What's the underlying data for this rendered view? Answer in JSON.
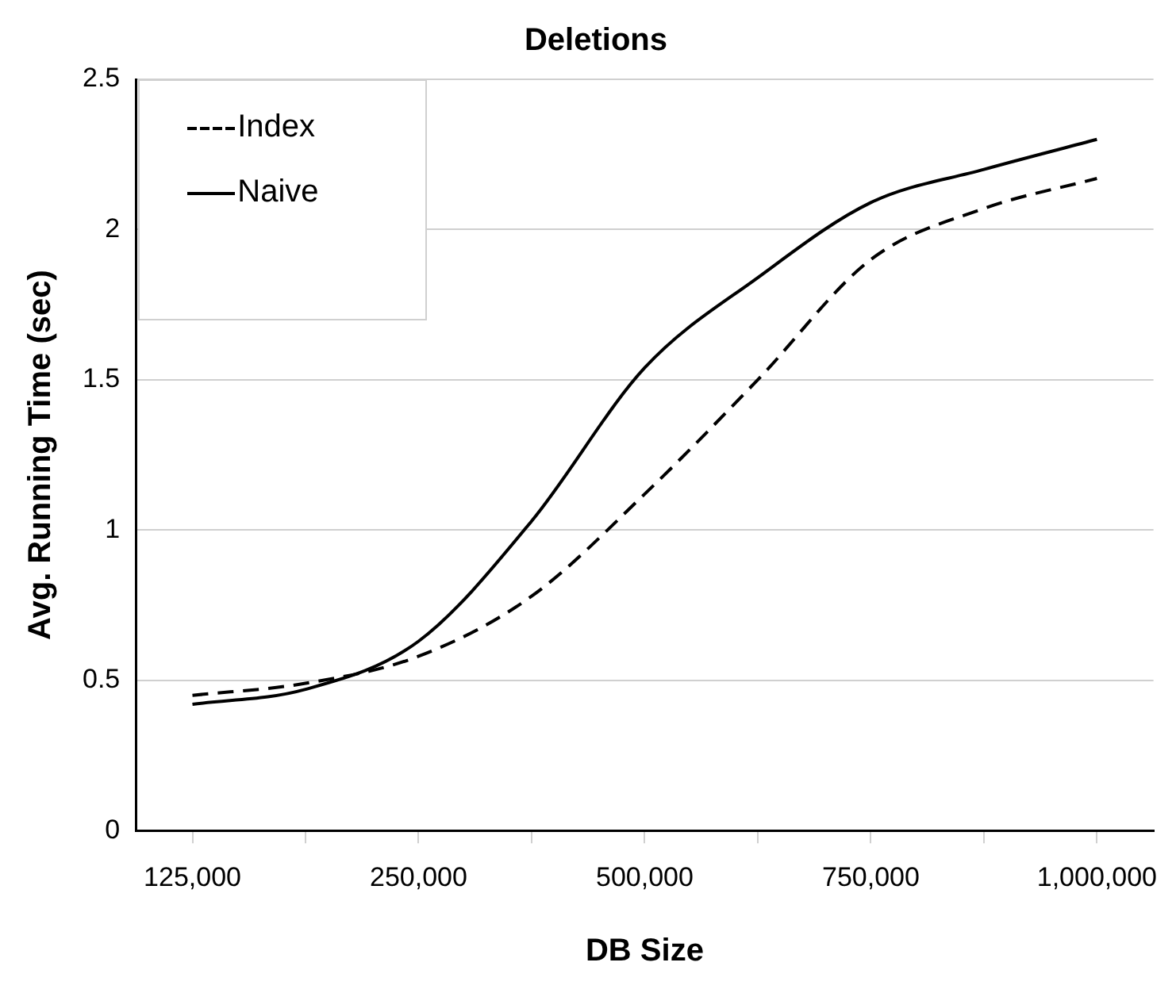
{
  "chart_data": {
    "type": "line",
    "title": "Deletions",
    "xlabel": "DB Size",
    "ylabel": "Avg. Running Time (sec)",
    "categories": [
      "125,000",
      null,
      "250,000",
      null,
      "500,000",
      null,
      "750,000",
      null,
      "1,000,000"
    ],
    "series": [
      {
        "name": "Index",
        "color": "#000000",
        "line_style": "dashed",
        "values": [
          0.45,
          0.49,
          0.58,
          0.78,
          1.12,
          1.5,
          1.9,
          2.07,
          2.17
        ]
      },
      {
        "name": "Naive",
        "color": "#000000",
        "line_style": "solid",
        "values": [
          0.42,
          0.47,
          0.63,
          1.03,
          1.54,
          1.84,
          2.09,
          2.2,
          2.3
        ]
      }
    ],
    "ylim": [
      0,
      2.5
    ],
    "yticks": [
      0,
      0.5,
      1,
      1.5,
      2,
      2.5
    ],
    "grid": "y",
    "legend": "top left",
    "marker": "none"
  }
}
